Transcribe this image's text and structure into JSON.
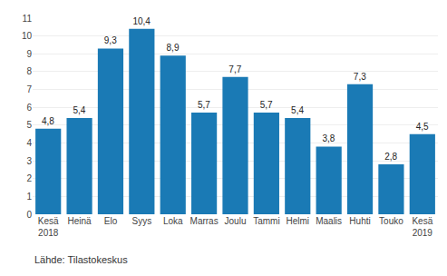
{
  "chart_data": {
    "type": "bar",
    "categories": [
      "Kesä\n2018",
      "Heinä",
      "Elo",
      "Syys",
      "Loka",
      "Marras",
      "Joulu",
      "Tammi",
      "Helmi",
      "Maalis",
      "Huhti",
      "Touko",
      "Kesä\n2019"
    ],
    "values": [
      4.8,
      5.4,
      9.3,
      10.4,
      8.9,
      5.7,
      7.7,
      5.7,
      5.4,
      3.8,
      7.3,
      2.8,
      4.5
    ],
    "value_labels": [
      "4,8",
      "5,4",
      "9,3",
      "10,4",
      "8,9",
      "5,7",
      "7,7",
      "5,7",
      "5,4",
      "3,8",
      "7,3",
      "2,8",
      "4,5"
    ],
    "color": "#1a7ab5",
    "ylim": [
      0,
      11
    ],
    "yticks": [
      0,
      1,
      2,
      3,
      4,
      5,
      6,
      7,
      8,
      9,
      10,
      11
    ],
    "grid": true,
    "data_labels": true,
    "annotations": [
      "Lähde: Tilastokeskus"
    ]
  }
}
